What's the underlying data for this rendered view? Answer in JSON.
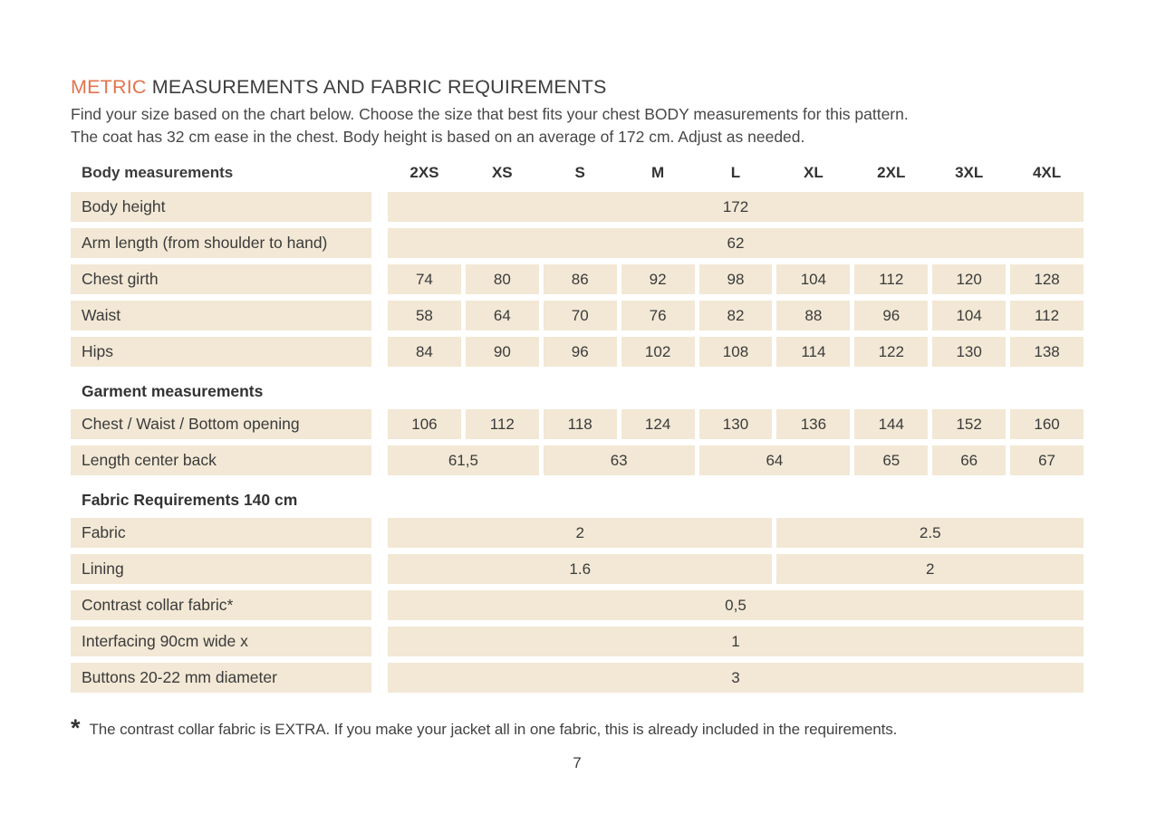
{
  "title": {
    "highlight": "METRIC",
    "rest": " MEASUREMENTS AND FABRIC REQUIREMENTS"
  },
  "intro": {
    "line1": "Find your size based on the chart below. Choose the size that best fits your chest BODY measurements for this pattern.",
    "line2": "The coat has 32 cm ease in the chest. Body height is based on an average of 172 cm. Adjust as needed."
  },
  "table": {
    "header_label": "Body measurements",
    "sizes": [
      "2XS",
      "XS",
      "S",
      "M",
      "L",
      "XL",
      "2XL",
      "3XL",
      "4XL"
    ],
    "sections": [
      {
        "heading": "",
        "rows": [
          {
            "label": "Body height",
            "cells": [
              {
                "value": "172",
                "span": 9
              }
            ]
          },
          {
            "label": "Arm length (from shoulder to hand)",
            "cells": [
              {
                "value": "62",
                "span": 9
              }
            ]
          },
          {
            "label": "Chest girth",
            "cells": [
              {
                "value": "74",
                "span": 1
              },
              {
                "value": "80",
                "span": 1
              },
              {
                "value": "86",
                "span": 1
              },
              {
                "value": "92",
                "span": 1
              },
              {
                "value": "98",
                "span": 1
              },
              {
                "value": "104",
                "span": 1
              },
              {
                "value": "112",
                "span": 1
              },
              {
                "value": "120",
                "span": 1
              },
              {
                "value": "128",
                "span": 1
              }
            ]
          },
          {
            "label": "Waist",
            "cells": [
              {
                "value": "58",
                "span": 1
              },
              {
                "value": "64",
                "span": 1
              },
              {
                "value": "70",
                "span": 1
              },
              {
                "value": "76",
                "span": 1
              },
              {
                "value": "82",
                "span": 1
              },
              {
                "value": "88",
                "span": 1
              },
              {
                "value": "96",
                "span": 1
              },
              {
                "value": "104",
                "span": 1
              },
              {
                "value": "112",
                "span": 1
              }
            ]
          },
          {
            "label": "Hips",
            "cells": [
              {
                "value": "84",
                "span": 1
              },
              {
                "value": "90",
                "span": 1
              },
              {
                "value": "96",
                "span": 1
              },
              {
                "value": "102",
                "span": 1
              },
              {
                "value": "108",
                "span": 1
              },
              {
                "value": "114",
                "span": 1
              },
              {
                "value": "122",
                "span": 1
              },
              {
                "value": "130",
                "span": 1
              },
              {
                "value": "138",
                "span": 1
              }
            ]
          }
        ]
      },
      {
        "heading": "Garment measurements",
        "rows": [
          {
            "label": "Chest / Waist / Bottom opening",
            "cells": [
              {
                "value": "106",
                "span": 1
              },
              {
                "value": "112",
                "span": 1
              },
              {
                "value": "118",
                "span": 1
              },
              {
                "value": "124",
                "span": 1
              },
              {
                "value": "130",
                "span": 1
              },
              {
                "value": "136",
                "span": 1
              },
              {
                "value": "144",
                "span": 1
              },
              {
                "value": "152",
                "span": 1
              },
              {
                "value": "160",
                "span": 1
              }
            ]
          },
          {
            "label": "Length center back",
            "cells": [
              {
                "value": "61,5",
                "span": 2
              },
              {
                "value": "63",
                "span": 2
              },
              {
                "value": "64",
                "span": 2
              },
              {
                "value": "65",
                "span": 1
              },
              {
                "value": "66",
                "span": 1
              },
              {
                "value": "67",
                "span": 1
              }
            ]
          }
        ]
      },
      {
        "heading": "Fabric Requirements 140 cm",
        "rows": [
          {
            "label": "Fabric",
            "cells": [
              {
                "value": "2",
                "span": 5
              },
              {
                "value": "2.5",
                "span": 4
              }
            ]
          },
          {
            "label": "Lining",
            "cells": [
              {
                "value": "1.6",
                "span": 5
              },
              {
                "value": "2",
                "span": 4
              }
            ]
          },
          {
            "label": "Contrast collar fabric*",
            "cells": [
              {
                "value": "0,5",
                "span": 9
              }
            ]
          },
          {
            "label": "Interfacing  90cm wide x",
            "cells": [
              {
                "value": "1",
                "span": 9
              }
            ]
          },
          {
            "label": "Buttons 20-22 mm diameter",
            "cells": [
              {
                "value": "3",
                "span": 9
              }
            ]
          }
        ]
      }
    ]
  },
  "footnote": {
    "marker": "*",
    "text": "The contrast collar fabric is EXTRA. If you make your jacket all in one fabric, this is already included in the requirements."
  },
  "page_number": "7",
  "colors": {
    "accent": "#E2744E",
    "cell_bg": "#F2E8D5",
    "text": "#3B3B3B"
  }
}
